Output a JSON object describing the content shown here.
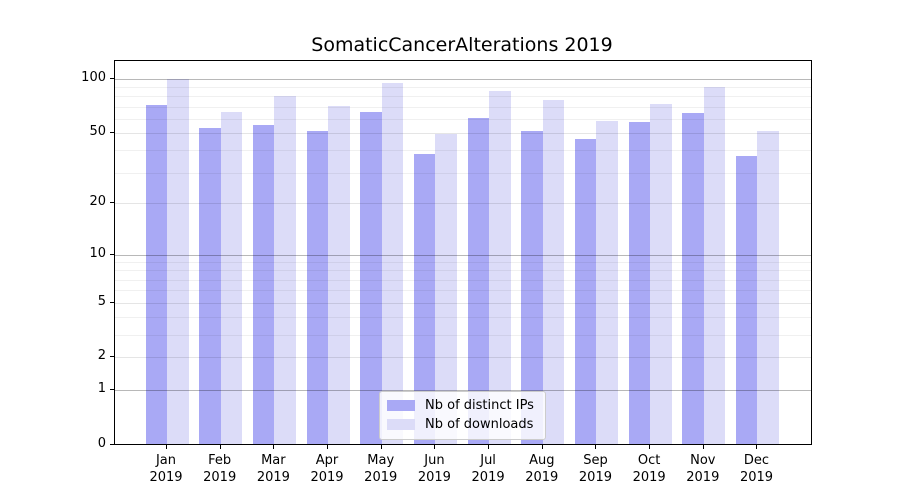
{
  "chart_data": {
    "type": "bar",
    "title": "SomaticCancerAlterations 2019",
    "categories": [
      "Jan 2019",
      "Feb 2019",
      "Mar 2019",
      "Apr 2019",
      "May 2019",
      "Jun 2019",
      "Jul 2019",
      "Aug 2019",
      "Sep 2019",
      "Oct 2019",
      "Nov 2019",
      "Dec 2019"
    ],
    "series": [
      {
        "name": "Nb of distinct IPs",
        "color": "#a9a9f5",
        "values": [
          71,
          53,
          55,
          51,
          65,
          38,
          60,
          51,
          46,
          57,
          64,
          37
        ]
      },
      {
        "name": "Nb of downloads",
        "color": "#dcdcf8",
        "values": [
          100,
          65,
          80,
          70,
          94,
          49,
          85,
          76,
          58,
          72,
          90,
          51
        ]
      }
    ],
    "y_axis": {
      "scale": "log1p",
      "tick_values": [
        0,
        1,
        2,
        5,
        10,
        20,
        50,
        100
      ],
      "range": [
        0,
        126
      ]
    },
    "grid": {
      "orientation": "horizontal",
      "major_values": [
        1,
        10,
        100
      ],
      "mid_values": [
        2,
        5,
        20,
        50
      ],
      "minor_values": [
        3,
        4,
        6,
        7,
        8,
        9,
        30,
        40,
        60,
        70,
        80,
        90
      ]
    },
    "legend": {
      "position": "bottom-center"
    }
  },
  "colors": {
    "major_grid": "rgba(0,0,0,0.28)",
    "mid_grid": "rgba(0,0,0,0.10)",
    "minor_grid": "rgba(0,0,0,0.06)",
    "spine": "#000000",
    "background": "#ffffff"
  }
}
